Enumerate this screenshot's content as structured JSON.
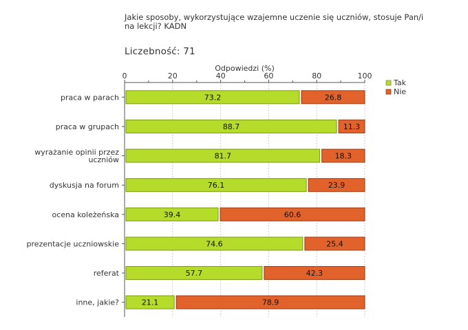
{
  "header": {
    "title": "Jakie sposoby, wykorzystujące wzajemne uczenie się uczniów, stosuje Pan/i na lekcji? KADN",
    "count_label": "Liczebność:",
    "count_value": "71"
  },
  "chart_data": {
    "type": "bar",
    "orientation": "horizontal",
    "stacked": true,
    "xlabel": "Odpowiedzi (%)",
    "xlim": [
      0,
      100
    ],
    "xticks": [
      0,
      20,
      40,
      60,
      80,
      100
    ],
    "grid": true,
    "legend_position": "top-right",
    "categories": [
      [
        "praca w parach"
      ],
      [
        "praca w grupach"
      ],
      [
        "wyrażanie opinii przez",
        "uczniów"
      ],
      [
        "dyskusja na forum"
      ],
      [
        "ocena koleżeńska"
      ],
      [
        "prezentacje uczniowskie"
      ],
      [
        "referat"
      ],
      [
        "inne, jakie?"
      ]
    ],
    "series": [
      {
        "name": "Tak",
        "color": "#b5dc2a",
        "stroke": "#7a9a10",
        "values": [
          73.2,
          88.7,
          81.7,
          76.1,
          39.4,
          74.6,
          57.7,
          21.1
        ]
      },
      {
        "name": "Nie",
        "color": "#e2622c",
        "stroke": "#9c3a12",
        "values": [
          26.8,
          11.3,
          18.3,
          23.9,
          60.6,
          25.4,
          42.3,
          78.9
        ]
      }
    ]
  }
}
